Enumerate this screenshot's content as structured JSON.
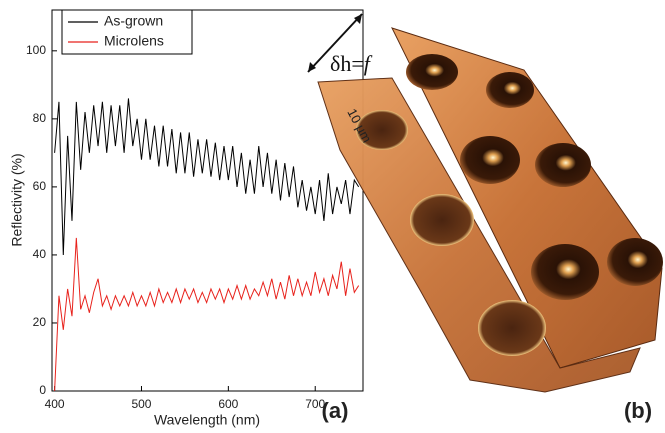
{
  "chart_data": {
    "type": "line",
    "x_label": "Wavelength (nm)",
    "y_label": "Reflectivity (%)",
    "panel_label": "(a)",
    "x": [
      400,
      405,
      410,
      415,
      420,
      425,
      430,
      435,
      440,
      445,
      450,
      455,
      460,
      465,
      470,
      475,
      480,
      485,
      490,
      495,
      500,
      505,
      510,
      515,
      520,
      525,
      530,
      535,
      540,
      545,
      550,
      555,
      560,
      565,
      570,
      575,
      580,
      585,
      590,
      595,
      600,
      605,
      610,
      615,
      620,
      625,
      630,
      635,
      640,
      645,
      650,
      655,
      660,
      665,
      670,
      675,
      680,
      685,
      690,
      695,
      700,
      705,
      710,
      715,
      720,
      725,
      730,
      735,
      740,
      745,
      750
    ],
    "series": [
      {
        "name": "As-grown",
        "color": "#000000",
        "values": [
          70,
          85,
          40,
          75,
          50,
          85,
          65,
          82,
          70,
          84,
          72,
          85,
          70,
          84,
          72,
          84,
          70,
          86,
          72,
          80,
          68,
          80,
          68,
          78,
          66,
          78,
          66,
          77,
          64,
          76,
          64,
          76,
          63,
          74,
          64,
          74,
          63,
          73,
          62,
          72,
          62,
          72,
          60,
          70,
          58,
          68,
          58,
          72,
          60,
          70,
          58,
          68,
          56,
          67,
          57,
          66,
          54,
          62,
          53,
          60,
          52,
          62,
          50,
          64,
          52,
          60,
          55,
          62,
          52,
          62,
          60
        ]
      },
      {
        "name": "Microlens",
        "color": "#e8221c",
        "values": [
          0,
          28,
          18,
          30,
          22,
          45,
          24,
          28,
          23,
          29,
          33,
          25,
          28,
          24,
          28,
          25,
          28,
          25,
          29,
          25,
          28,
          25,
          29,
          25,
          30,
          26,
          29,
          26,
          30,
          26,
          30,
          27,
          30,
          26,
          29,
          26,
          30,
          27,
          30,
          26,
          30,
          27,
          31,
          27,
          31,
          27,
          30,
          28,
          32,
          28,
          33,
          27,
          32,
          27,
          34,
          28,
          33,
          28,
          32,
          28,
          35,
          29,
          33,
          28,
          34,
          30,
          38,
          28,
          36,
          29,
          31
        ]
      }
    ],
    "xlim": [
      397,
      755
    ],
    "ylim": [
      0,
      112
    ],
    "xticks": [
      400,
      500,
      600,
      700
    ],
    "yticks": [
      0,
      20,
      40,
      60,
      80,
      100
    ],
    "legend": "upper left"
  },
  "image": {
    "label": "(b)",
    "annotation": "δh=",
    "annotation_variable": "f",
    "scale_label": "10 µm"
  }
}
